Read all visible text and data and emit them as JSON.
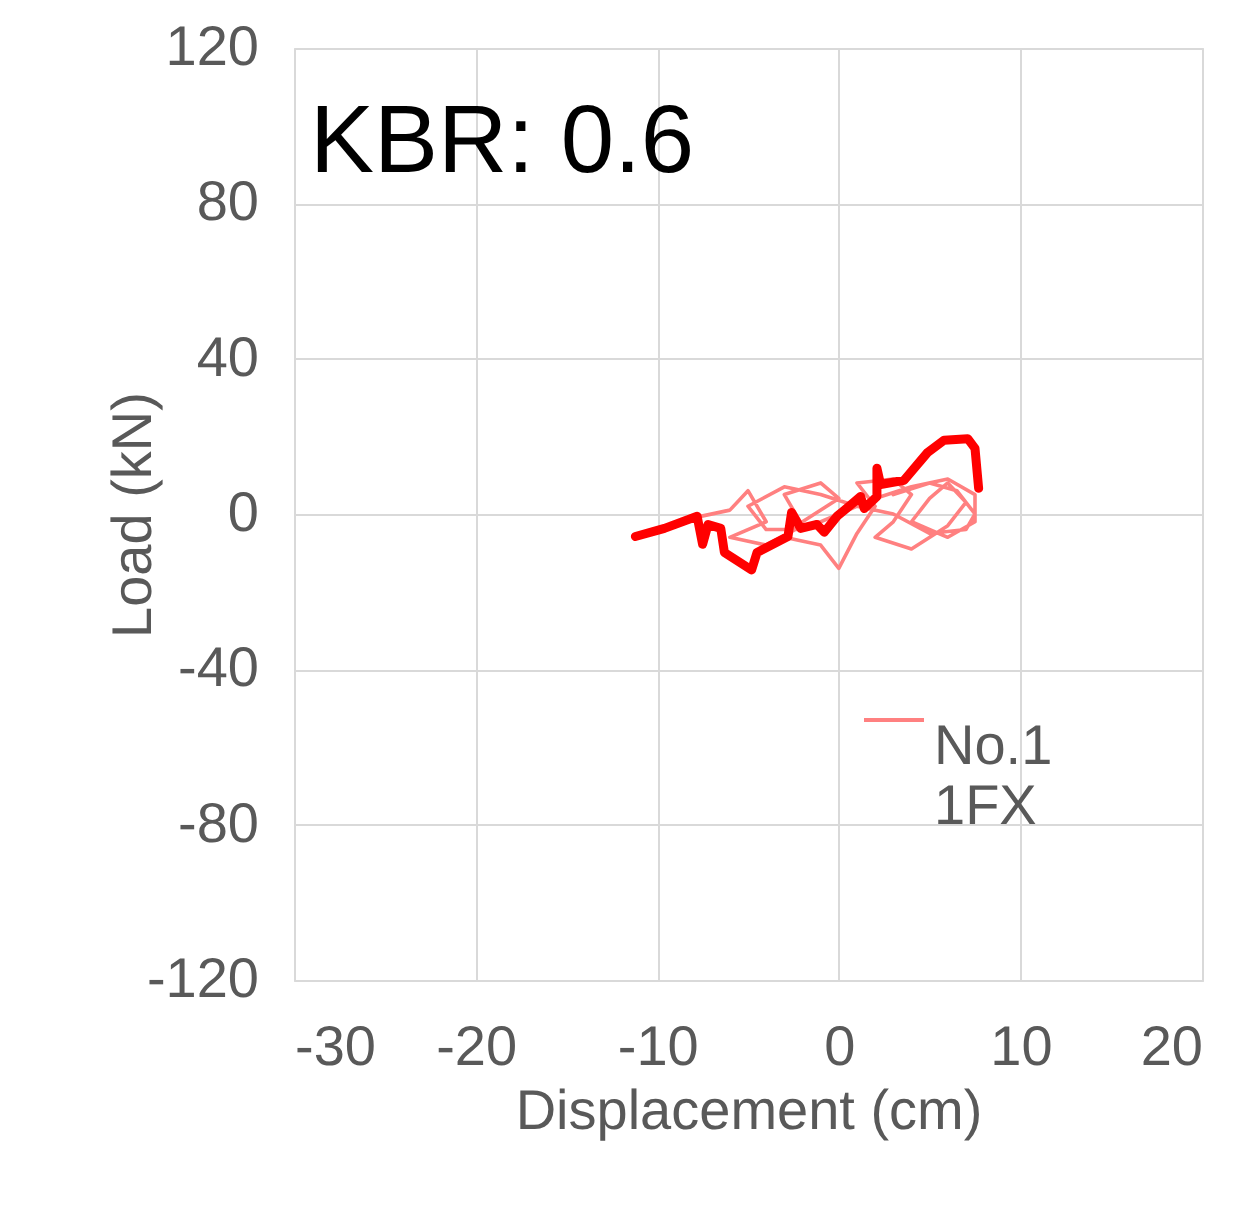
{
  "chart_data": {
    "type": "line",
    "xlabel": "Displacement (cm)",
    "ylabel": "Load (kN)",
    "annotations": [
      "KBR: 0.6"
    ],
    "xlim": [
      -30,
      20
    ],
    "xticks": [
      -30,
      -20,
      -10,
      0,
      10,
      20
    ],
    "ylim": [
      -120,
      120
    ],
    "yticks": [
      -120,
      -80,
      -40,
      0,
      40,
      80,
      120
    ],
    "grid": true,
    "legend": "bottom right",
    "marker": "none",
    "line_style": "solid",
    "series": [
      {
        "name": "No.1 1FX",
        "color": "#ff8080",
        "x": [
          -10.5,
          -8,
          -6,
          -5,
          -4,
          -6,
          -4,
          -2,
          -3,
          -1,
          0,
          -2,
          -3,
          -1,
          0,
          1,
          2,
          1,
          3,
          4,
          3,
          2,
          4,
          6,
          7,
          6,
          5,
          4,
          6,
          7.5,
          7.5,
          6,
          4,
          2,
          0,
          -2,
          -4,
          -5,
          -3,
          -1,
          1,
          3,
          5,
          7,
          7.5,
          6.5,
          5,
          3
        ],
        "values": [
          -5,
          -1,
          1,
          6,
          -2,
          -6,
          -8,
          -3,
          5,
          8,
          4,
          -2,
          -6,
          -8,
          -14,
          -5,
          2,
          8,
          9,
          5,
          -2,
          -6,
          -9,
          -3,
          3,
          8,
          4,
          -2,
          -6,
          -2,
          5,
          9,
          7,
          4,
          0,
          -4,
          -4,
          2,
          7,
          5,
          2,
          0,
          -5,
          -4,
          0,
          6,
          8,
          5
        ]
      },
      {
        "color": "#ff0000",
        "x": [
          -11.2,
          -9.6,
          -7.8,
          -7.5,
          -7.2,
          -6.5,
          -6.3,
          -4.8,
          -4.5,
          -2.8,
          -2.6,
          -2.1,
          -1.2,
          -0.8,
          -0.1,
          0.7,
          1.2,
          1.4,
          2.1,
          2.1,
          2.3,
          3.6,
          4.9,
          5.8,
          7.1,
          7.5,
          7.7
        ],
        "values": [
          -5.8,
          -3.7,
          -0.6,
          -7.8,
          -2.7,
          -3.7,
          -9.9,
          -14.4,
          -9.9,
          -5.8,
          0.4,
          -3.7,
          -2.7,
          -4.7,
          -0.6,
          2.5,
          4.5,
          1.4,
          4.5,
          11.8,
          7.6,
          8.7,
          15.9,
          19,
          19.4,
          16.9,
          6.6
        ]
      }
    ]
  }
}
